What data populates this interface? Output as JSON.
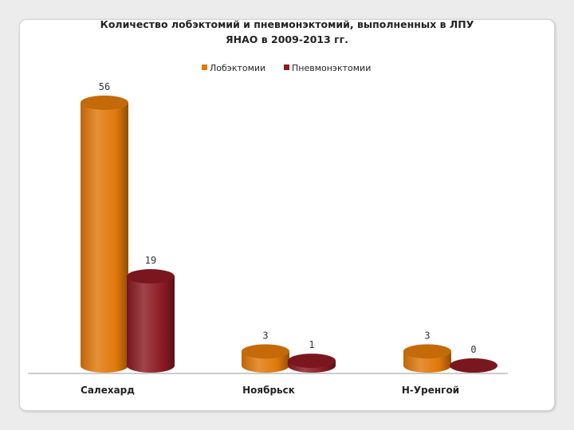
{
  "chart_data": {
    "type": "bar",
    "style": "3d-cylinder",
    "title_lines": [
      "Количество лобэктомий и пневмонэктомий, выполненных в ЛПУ",
      "ЯНАО в 2009-2013 гг."
    ],
    "categories": [
      "Салехард",
      "Ноябрьск",
      "Н-Уренгой"
    ],
    "series": [
      {
        "name": "Лобэктомии",
        "values": [
          56,
          3,
          3
        ],
        "labels": [
          "56",
          "3",
          "3"
        ],
        "color": "#e0780a"
      },
      {
        "name": "Пневмонэктомии",
        "values": [
          19,
          1,
          0
        ],
        "labels": [
          "19",
          "1",
          "0"
        ],
        "color": "#8b1a22"
      }
    ],
    "ylim": [
      0,
      56
    ],
    "legend": "top",
    "grid": false
  },
  "colors": {
    "background": "#ececec",
    "panel": "#ffffff",
    "axis": "#999999"
  }
}
